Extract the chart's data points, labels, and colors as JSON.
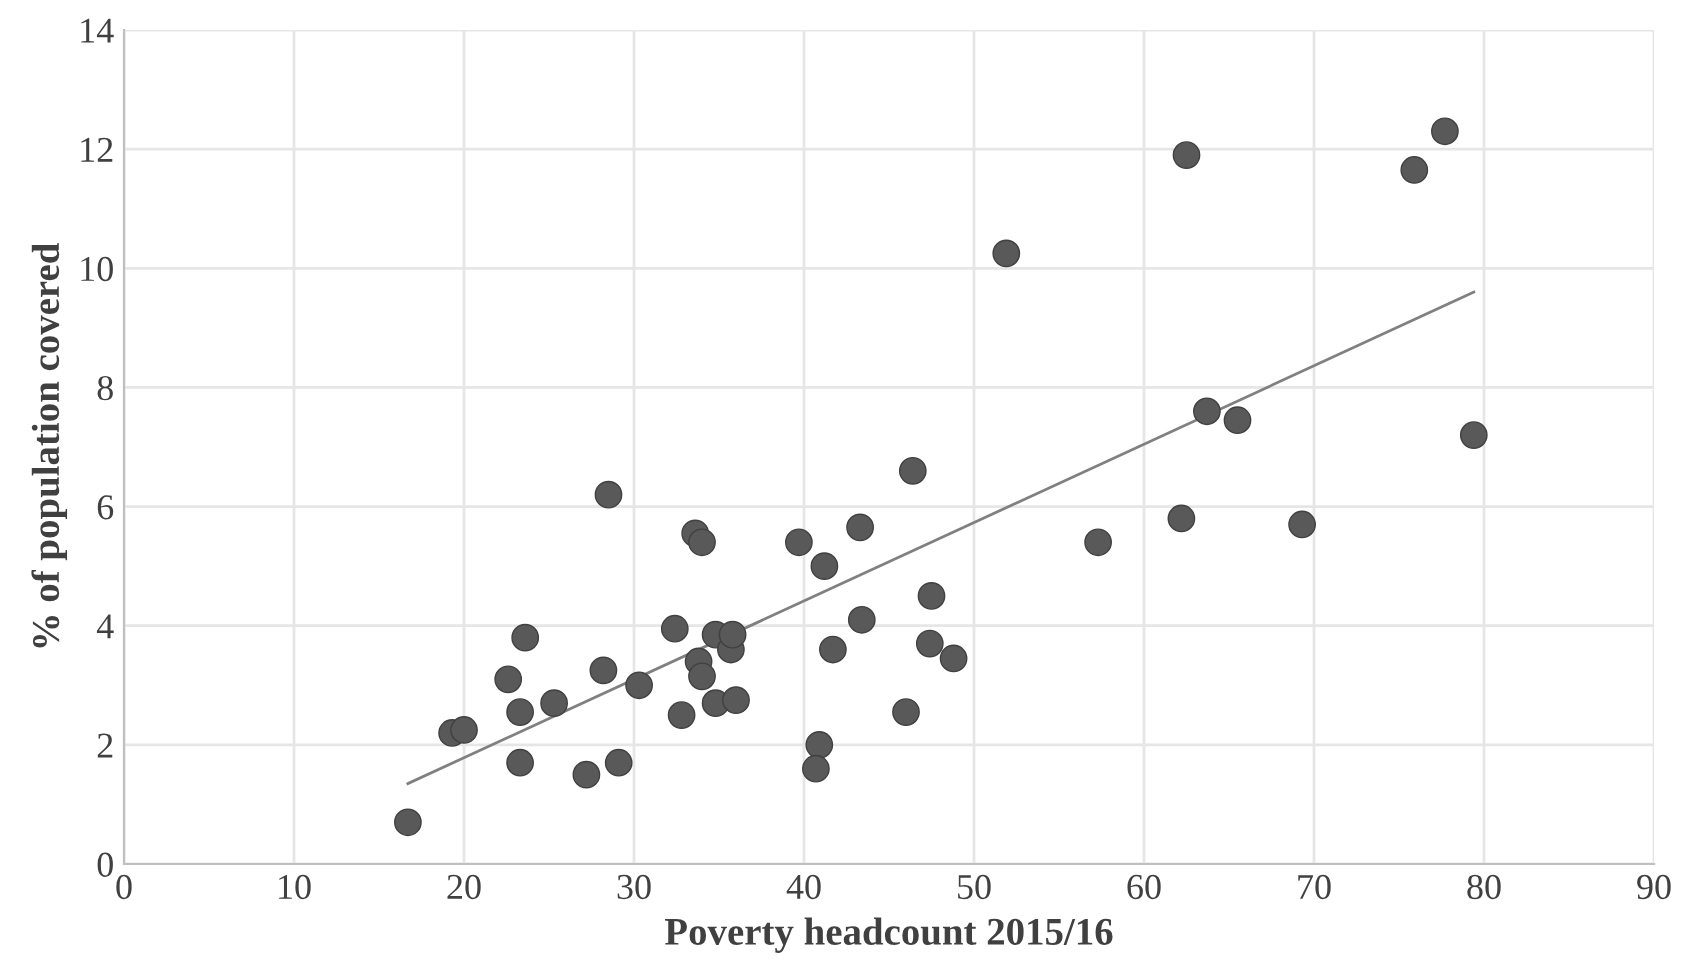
{
  "chart_data": {
    "type": "scatter",
    "xlabel": "Poverty headcount 2015/16",
    "ylabel": "% of population covered",
    "xlim": [
      0,
      90
    ],
    "xticks": [
      0,
      10,
      20,
      30,
      40,
      50,
      60,
      70,
      80,
      90
    ],
    "ylim": [
      0,
      14
    ],
    "yticks": [
      0,
      2,
      4,
      6,
      8,
      10,
      12,
      14
    ],
    "grid": true,
    "legend": false,
    "marker": "circle",
    "series": [
      {
        "color": "#595959",
        "x": [
          16.7,
          19.3,
          20.0,
          22.6,
          23.3,
          23.6,
          23.3,
          25.3,
          27.2,
          28.2,
          28.5,
          29.1,
          30.3,
          32.4,
          32.8,
          33.6,
          34.0,
          33.8,
          34.0,
          34.8,
          34.8,
          35.7,
          35.8,
          36.0,
          39.7,
          41.2,
          43.3,
          41.7,
          43.4,
          40.9,
          40.7,
          46.4,
          47.5,
          47.4,
          48.8,
          46.0,
          51.9,
          57.3,
          62.2,
          62.5,
          63.7,
          65.5,
          69.3,
          75.9,
          77.7,
          79.4
        ],
        "values": [
          0.7,
          2.2,
          2.25,
          3.1,
          2.55,
          3.8,
          1.7,
          2.7,
          1.5,
          3.25,
          6.2,
          1.7,
          3.0,
          3.95,
          2.5,
          5.55,
          5.4,
          3.4,
          3.15,
          3.85,
          2.7,
          3.6,
          3.85,
          2.75,
          5.4,
          5.0,
          5.65,
          3.6,
          4.1,
          2.0,
          1.6,
          6.6,
          4.5,
          3.7,
          3.45,
          2.55,
          10.25,
          5.4,
          5.8,
          11.9,
          7.6,
          7.45,
          5.7,
          11.65,
          12.3,
          7.2
        ]
      },
      {
        "type": "line",
        "color": "#808080",
        "marker": "none",
        "x": [
          16.7,
          79.4
        ],
        "values": [
          1.35,
          9.6
        ]
      }
    ]
  }
}
